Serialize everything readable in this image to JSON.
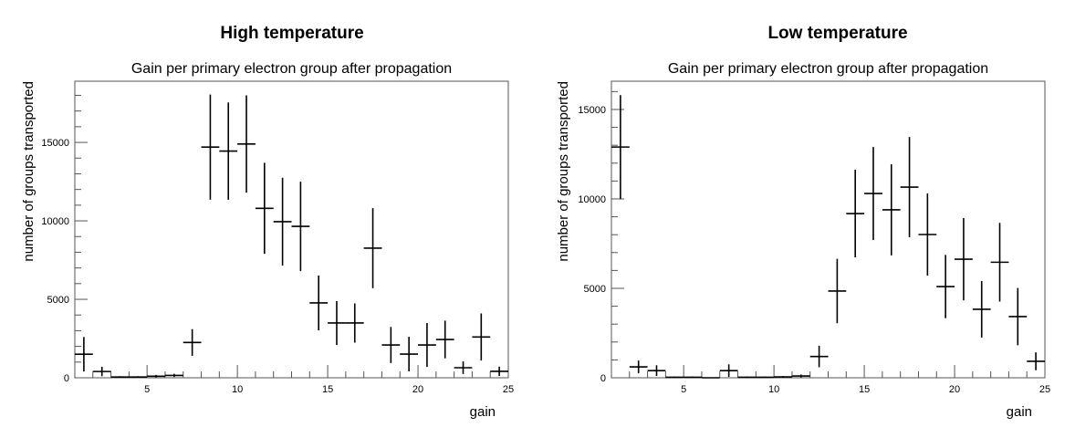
{
  "chart_data": [
    {
      "type": "scatter",
      "panel_title": "High temperature",
      "title": "Gain per primary electron group after propagation",
      "xlabel": "gain",
      "ylabel": "number of groups transported",
      "xlim": [
        1,
        25
      ],
      "ylim": [
        0,
        18900
      ],
      "x_ticks": [
        "5",
        "10",
        "15",
        "20",
        "25"
      ],
      "y_ticks": [
        "0",
        "5000",
        "10000",
        "15000"
      ],
      "bin_width": 1,
      "x": [
        1.5,
        2.5,
        3.5,
        4.5,
        5.5,
        6.5,
        7.5,
        8.5,
        9.5,
        10.5,
        11.5,
        12.5,
        13.5,
        14.5,
        15.5,
        16.5,
        17.5,
        18.5,
        19.5,
        20.5,
        21.5,
        22.5,
        23.5,
        24.5
      ],
      "values": [
        1500,
        400,
        50,
        50,
        100,
        150,
        2250,
        14700,
        14450,
        14900,
        10800,
        9950,
        9650,
        4770,
        3490,
        3490,
        8260,
        2090,
        1510,
        2090,
        2440,
        640,
        2600,
        410
      ],
      "errors": [
        1100,
        300,
        50,
        50,
        80,
        100,
        850,
        3350,
        3100,
        3100,
        2900,
        2800,
        2850,
        1750,
        1400,
        1250,
        2550,
        1150,
        1100,
        1400,
        1200,
        400,
        1500,
        300
      ],
      "color": "#000000"
    },
    {
      "type": "scatter",
      "panel_title": "Low temperature",
      "title": "Gain per primary electron group after propagation",
      "xlabel": "gain",
      "ylabel": "number of groups transported",
      "xlim": [
        1,
        25
      ],
      "ylim": [
        0,
        16580
      ],
      "x_ticks": [
        "5",
        "10",
        "15",
        "20",
        "25"
      ],
      "y_ticks": [
        "0",
        "5000",
        "10000",
        "15000"
      ],
      "bin_width": 1,
      "x": [
        1.5,
        2.5,
        3.5,
        4.5,
        5.5,
        6.5,
        7.5,
        8.5,
        9.5,
        10.5,
        11.5,
        12.5,
        13.5,
        14.5,
        15.5,
        16.5,
        17.5,
        18.5,
        19.5,
        20.5,
        21.5,
        22.5,
        23.5,
        24.5
      ],
      "values": [
        12900,
        610,
        400,
        30,
        30,
        0,
        400,
        30,
        30,
        50,
        100,
        1190,
        4850,
        9180,
        10300,
        9390,
        10660,
        8010,
        5100,
        6630,
        3830,
        6460,
        3420,
        920
      ],
      "errors": [
        2900,
        350,
        300,
        40,
        40,
        0,
        350,
        40,
        40,
        50,
        80,
        600,
        1800,
        2450,
        2600,
        2550,
        2800,
        2300,
        1770,
        2300,
        1580,
        2200,
        1600,
        500
      ],
      "color": "#000000"
    }
  ]
}
